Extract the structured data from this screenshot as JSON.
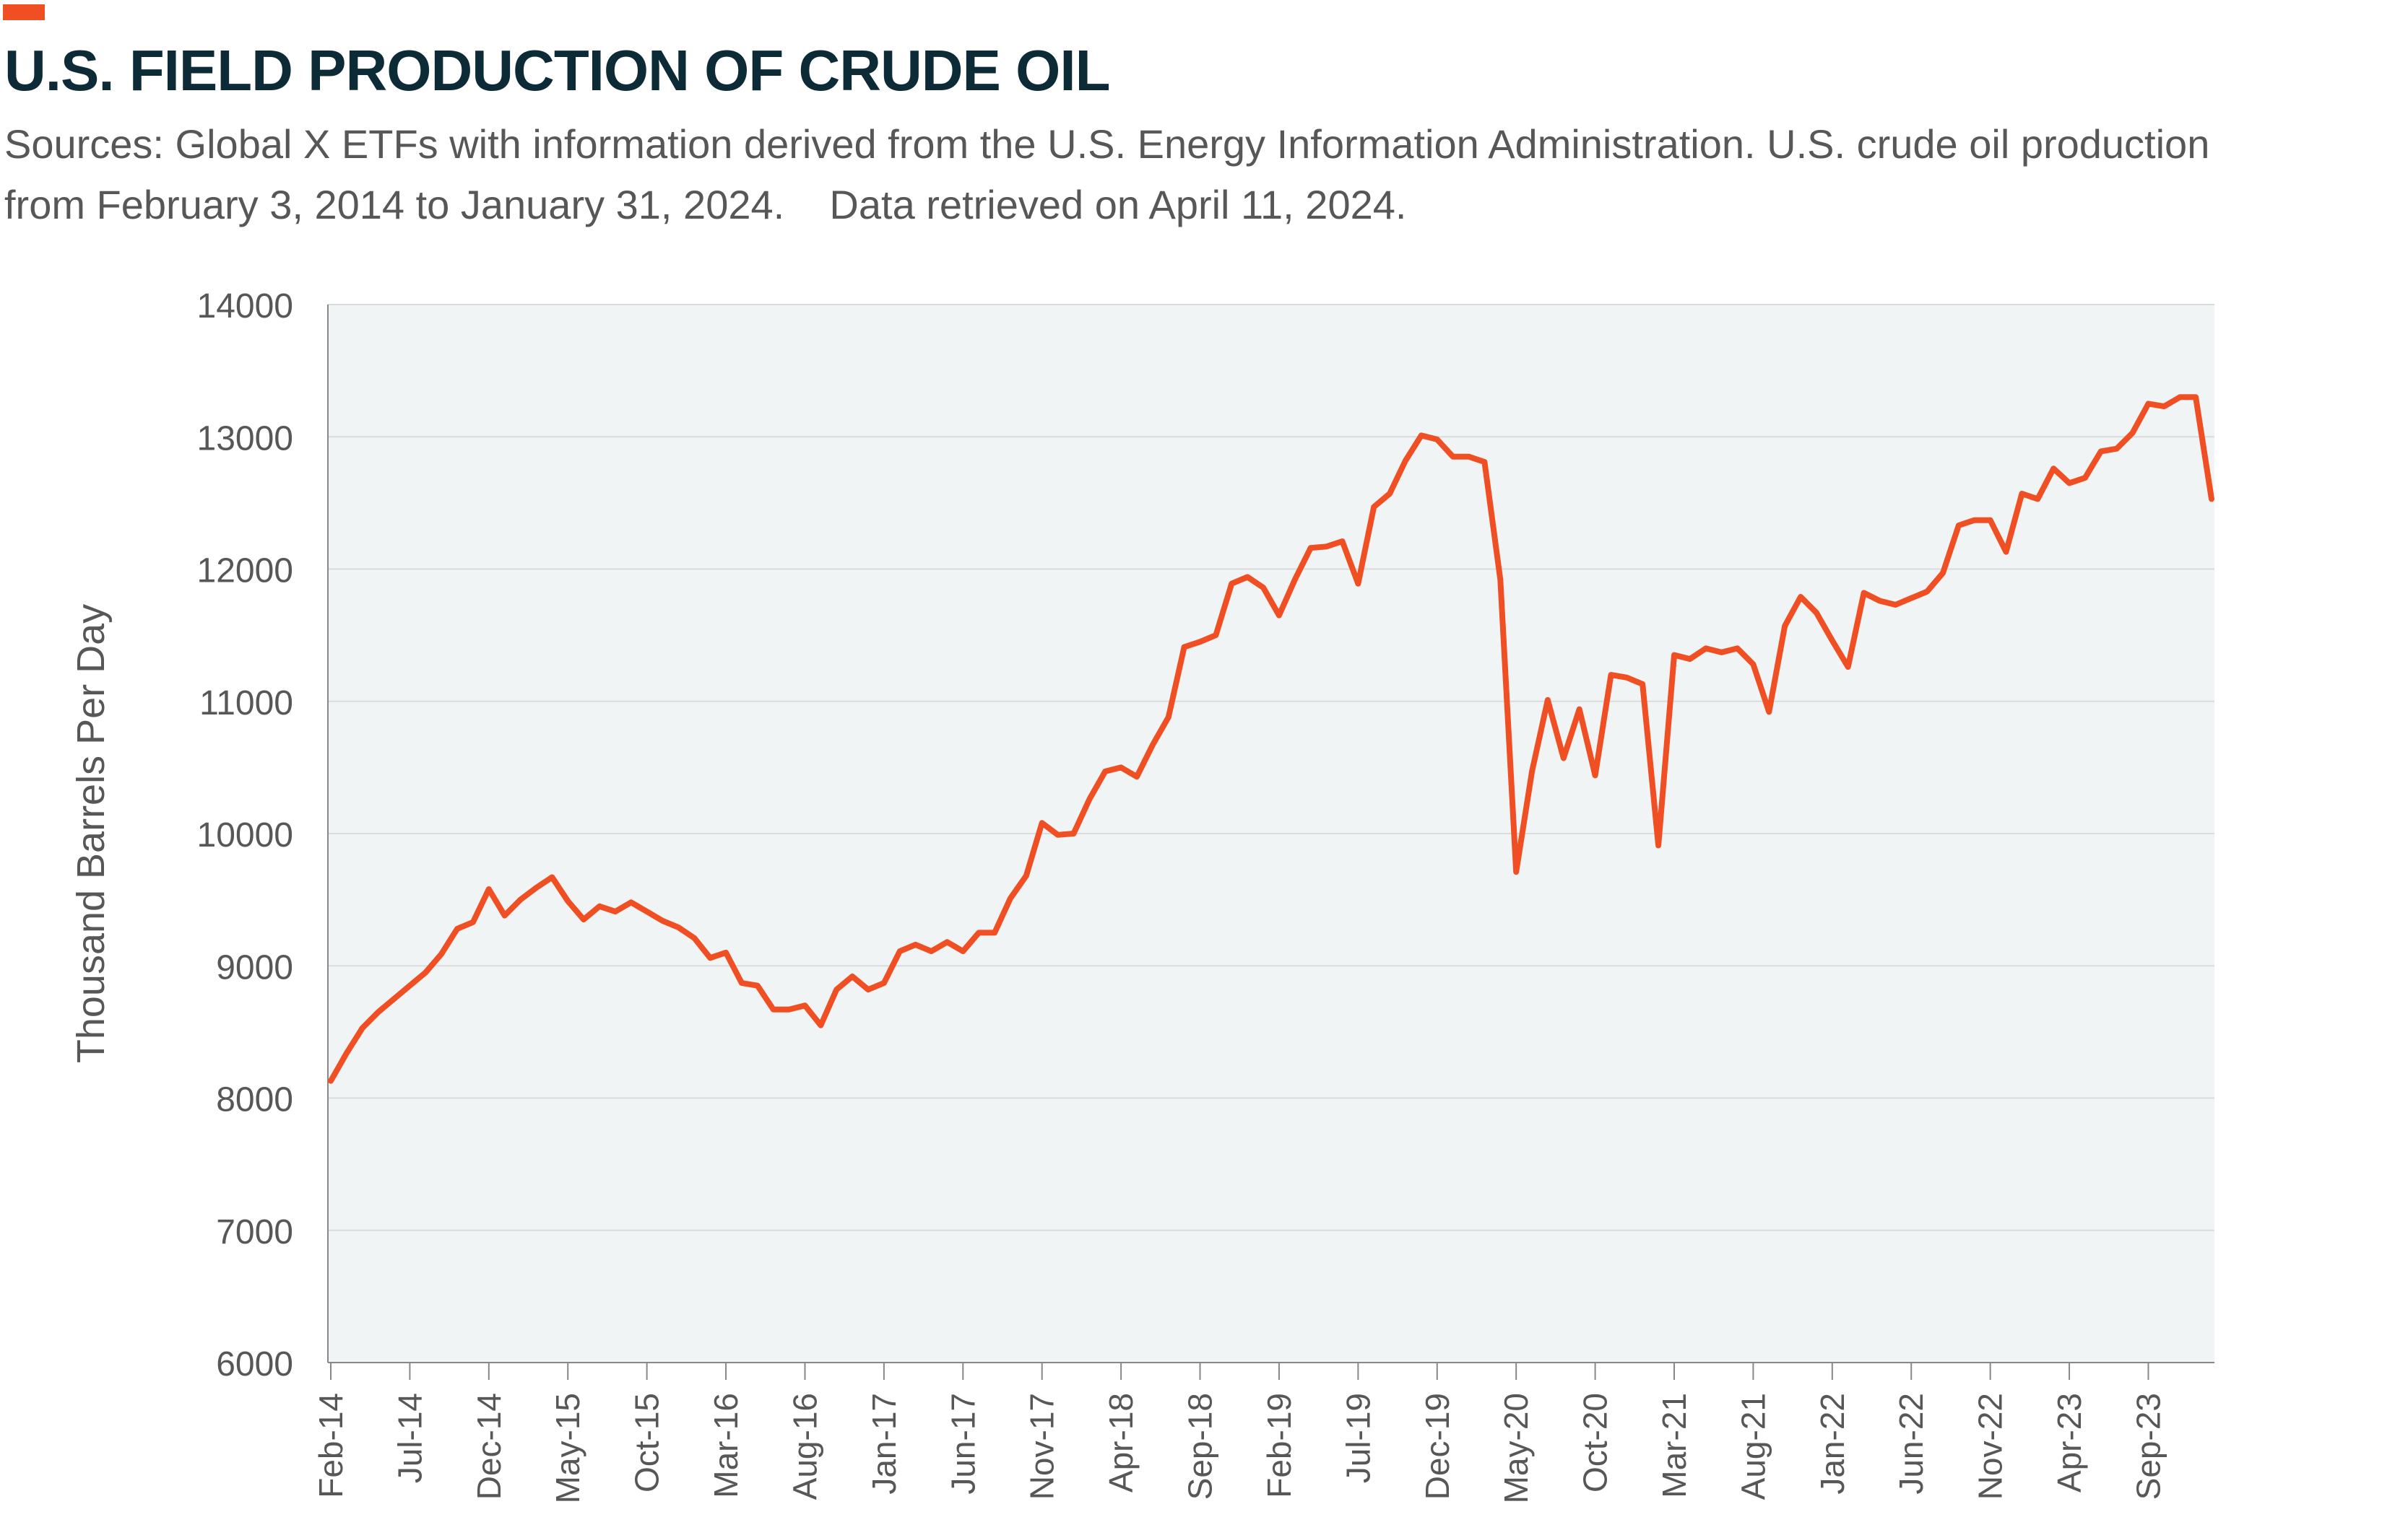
{
  "colors": {
    "accent": "#f04e23",
    "title": "#0d2b36",
    "text": "#575757",
    "plot_bg": "#f1f4f4",
    "grid": "#d9dcdc",
    "axis": "#888888"
  },
  "header": {
    "title": "U.S. FIELD PRODUCTION OF CRUDE OIL",
    "subtitle_line1": "Sources: Global X ETFs with information derived from the U.S. Energy Information Administration. U.S. crude oil production",
    "subtitle_line2": "from February 3, 2014 to January 31, 2024.    Data retrieved on April 11, 2024."
  },
  "chart_data": {
    "type": "line",
    "title": "U.S. FIELD PRODUCTION OF CRUDE OIL",
    "xlabel": "",
    "ylabel": "Thousand Barrels Per Day",
    "ylim": [
      6000,
      14000
    ],
    "yticks": [
      6000,
      7000,
      8000,
      9000,
      10000,
      11000,
      12000,
      13000,
      14000
    ],
    "xtick_labels": [
      "Feb-14",
      "Jul-14",
      "Dec-14",
      "May-15",
      "Oct-15",
      "Mar-16",
      "Aug-16",
      "Jan-17",
      "Jun-17",
      "Nov-17",
      "Apr-18",
      "Sep-18",
      "Feb-19",
      "Jul-19",
      "Dec-19",
      "May-20",
      "Oct-20",
      "Mar-21",
      "Aug-21",
      "Jan-22",
      "Jun-22",
      "Nov-22",
      "Apr-23",
      "Sep-23"
    ],
    "x_start": "Feb-14",
    "x_end": "Jan-24",
    "grid": true,
    "legend": false,
    "series": [
      {
        "values": [
          8130,
          8340,
          8530,
          8650,
          8750,
          8850,
          8950,
          9090,
          9280,
          9330,
          9580,
          9380,
          9500,
          9590,
          9670,
          9490,
          9350,
          9450,
          9410,
          9480,
          9410,
          9340,
          9290,
          9210,
          9060,
          9100,
          8870,
          8850,
          8670,
          8670,
          8700,
          8550,
          8820,
          8920,
          8820,
          8870,
          9110,
          9160,
          9110,
          9180,
          9110,
          9250,
          9250,
          9510,
          9680,
          10080,
          9990,
          10000,
          10260,
          10470,
          10500,
          10430,
          10670,
          10880,
          11410,
          11450,
          11500,
          11890,
          11940,
          11860,
          11650,
          11920,
          12160,
          12170,
          12210,
          11890,
          12470,
          12570,
          12820,
          13010,
          12980,
          12850,
          12850,
          12810,
          11920,
          9710,
          10470,
          11010,
          10570,
          10940,
          10440,
          11200,
          11180,
          11130,
          9910,
          11350,
          11320,
          11400,
          11370,
          11400,
          11280,
          10920,
          11570,
          11790,
          11670,
          11460,
          11260,
          11820,
          11760,
          11730,
          11780,
          11830,
          11970,
          12330,
          12370,
          12370,
          12130,
          12570,
          12530,
          12760,
          12650,
          12690,
          12890,
          12910,
          13030,
          13250,
          13230,
          13300,
          13300,
          12530
        ]
      }
    ]
  }
}
